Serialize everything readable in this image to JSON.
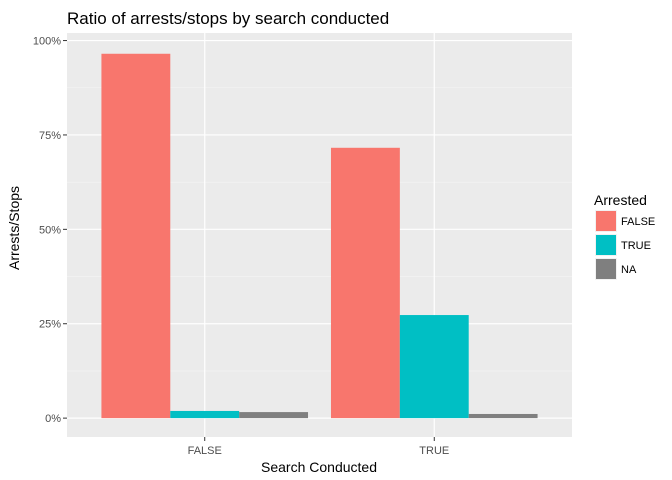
{
  "chart_data": {
    "type": "bar",
    "title": "Ratio of arrests/stops by search conducted",
    "xlabel": "Search Conducted",
    "ylabel": "Arrests/Stops",
    "categories": [
      "FALSE",
      "TRUE"
    ],
    "series": [
      {
        "name": "FALSE",
        "color": "#F8766D",
        "values": [
          0.965,
          0.716
        ]
      },
      {
        "name": "TRUE",
        "color": "#00BFC4",
        "values": [
          0.019,
          0.273
        ]
      },
      {
        "name": "NA",
        "color": "#7F7F7F",
        "values": [
          0.016,
          0.011
        ]
      }
    ],
    "ylim": [
      -0.05,
      1.02
    ],
    "yticks": [
      0,
      0.25,
      0.5,
      0.75,
      1.0
    ],
    "ytick_labels": [
      "0%",
      "25%",
      "50%",
      "75%",
      "100%"
    ],
    "legend_title": "Arrested",
    "legend_position": "right",
    "grid": true,
    "panel_background": "#EBEBEB"
  }
}
